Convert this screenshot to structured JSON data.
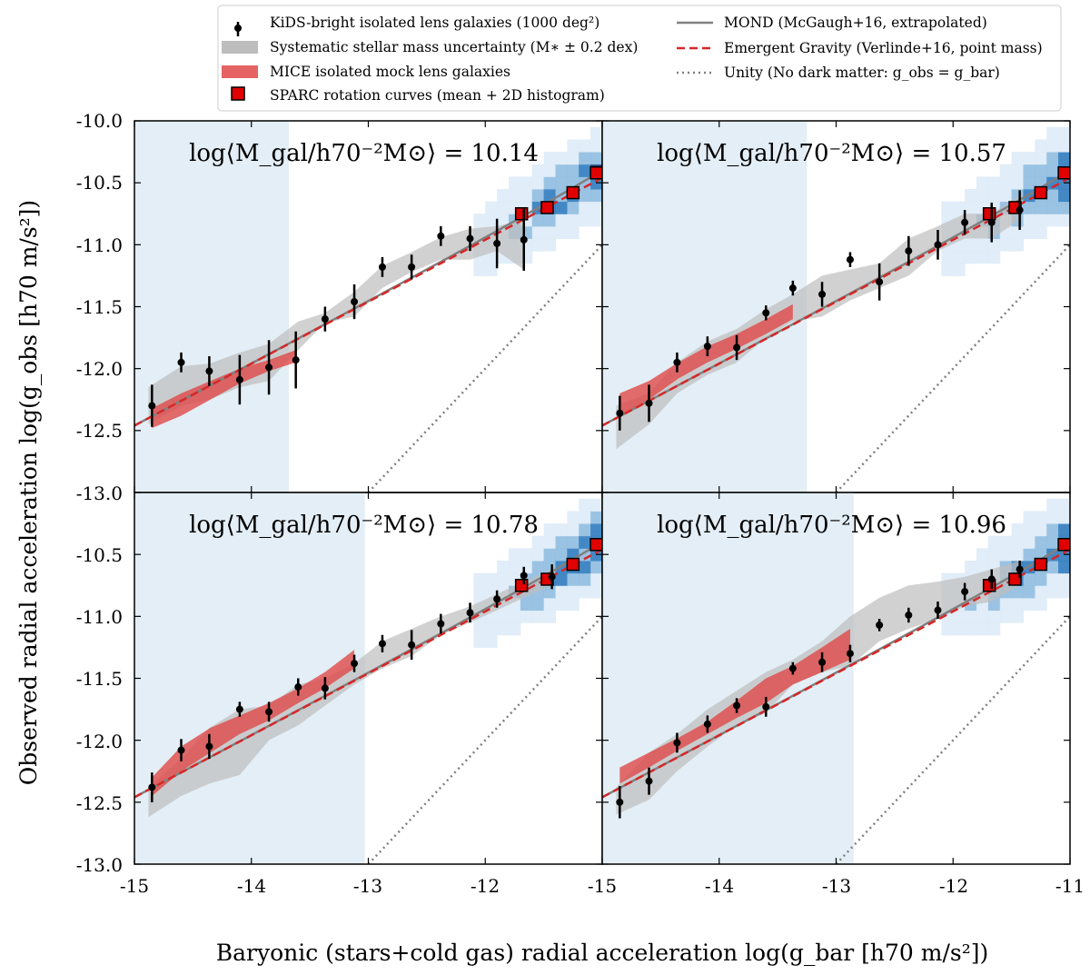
{
  "legend": {
    "left": [
      {
        "label": "KiDS-bright isolated lens galaxies (1000 deg²)",
        "marker": "errorbar-point",
        "color": "#000000"
      },
      {
        "label": "Systematic stellar mass uncertainty (M∗ ± 0.2 dex)",
        "marker": "band",
        "color": "#bdbdbd"
      },
      {
        "label": "MICE isolated mock lens galaxies",
        "marker": "band",
        "color": "#e04848"
      },
      {
        "label": "SPARC rotation curves (mean + 2D histogram)",
        "marker": "square",
        "color": "#e00000"
      }
    ],
    "right": [
      {
        "label": "MOND (McGaugh+16, extrapolated)",
        "marker": "solid",
        "color": "#808080"
      },
      {
        "label": "Emergent Gravity (Verlinde+16, point mass)",
        "marker": "dashed",
        "color": "#d62728"
      },
      {
        "label": "Unity (No dark matter: g_obs = g_bar)",
        "marker": "dotted",
        "color": "#808080"
      }
    ]
  },
  "axes": {
    "ylabel": "Observed radial acceleration log(g_obs [h70 m/s²])",
    "xlabel": "Baryonic (stars+cold gas) radial acceleration log(g_bar [h70 m/s²])",
    "xticks": [
      "-15",
      "-14",
      "-13",
      "-12",
      "-11"
    ],
    "yticks_top": [
      "-10.0",
      "-10.5",
      "-11.0",
      "-11.5",
      "-12.0",
      "-12.5",
      "-13.0"
    ],
    "yticks_bottom": [
      "-10.5",
      "-11.0",
      "-11.5",
      "-12.0",
      "-12.5",
      "-13.0"
    ]
  },
  "colors": {
    "shade": "#e3eef6",
    "gray_band": "#bdbdbd",
    "mice_band": "#e04848",
    "mond": "#808080",
    "eg": "#d62728",
    "unity": "#808080",
    "sparc": "#e00000",
    "hist_dark": "#08306b",
    "hist_light": "#deebf7"
  },
  "chart_data": [
    {
      "type": "scatter",
      "panel": "top-left",
      "title": "log⟨M_gal/h70⁻²M⊙⟩ = 10.14",
      "xlim": [
        -15,
        -11
      ],
      "ylim": [
        -13,
        -10
      ],
      "shaded_xrange": [
        -15,
        -13.68
      ],
      "kids": {
        "x": [
          -14.85,
          -14.6,
          -14.36,
          -14.1,
          -13.85,
          -13.62,
          -13.37,
          -13.12,
          -12.88,
          -12.63,
          -12.38,
          -12.13,
          -11.9,
          -11.67
        ],
        "y": [
          -12.3,
          -11.95,
          -12.02,
          -12.09,
          -11.99,
          -11.93,
          -11.6,
          -11.46,
          -11.18,
          -11.18,
          -10.93,
          -10.95,
          -10.99,
          -10.96
        ],
        "yerr": [
          0.17,
          0.08,
          0.12,
          0.2,
          0.22,
          0.23,
          0.1,
          0.14,
          0.08,
          0.1,
          0.08,
          0.1,
          0.2,
          0.25
        ]
      },
      "gray_band": {
        "x": [
          -14.88,
          -14.6,
          -14.36,
          -14.1,
          -13.85,
          -13.6,
          -13.37,
          -13.12,
          -12.88,
          -12.63,
          -12.38,
          -12.13,
          -11.9,
          -11.67
        ],
        "upper": [
          -12.15,
          -11.98,
          -11.96,
          -11.87,
          -11.8,
          -11.62,
          -11.55,
          -11.38,
          -11.17,
          -11.06,
          -10.94,
          -10.87,
          -10.85,
          -10.8
        ],
        "lower": [
          -12.45,
          -12.3,
          -12.25,
          -12.15,
          -12.1,
          -11.85,
          -11.63,
          -11.58,
          -11.35,
          -11.22,
          -11.12,
          -11.12,
          -11.05,
          -11.2
        ]
      },
      "mice_band": {
        "x": [
          -14.85,
          -14.6,
          -14.35,
          -14.1,
          -13.85,
          -13.62
        ],
        "upper": [
          -12.32,
          -12.2,
          -12.1,
          -12.0,
          -11.93,
          -11.85
        ],
        "lower": [
          -12.48,
          -12.38,
          -12.25,
          -12.12,
          -12.02,
          -11.95
        ]
      },
      "sparc": {
        "x": [
          -11.69,
          -11.47,
          -11.25,
          -11.05
        ],
        "y": [
          -10.75,
          -10.7,
          -10.58,
          -10.42
        ]
      }
    },
    {
      "type": "scatter",
      "panel": "top-right",
      "title": "log⟨M_gal/h70⁻²M⊙⟩ = 10.57",
      "xlim": [
        -15,
        -11
      ],
      "ylim": [
        -13,
        -10
      ],
      "shaded_xrange": [
        -15,
        -13.25
      ],
      "kids": {
        "x": [
          -14.85,
          -14.6,
          -14.36,
          -14.1,
          -13.85,
          -13.6,
          -13.37,
          -13.12,
          -12.88,
          -12.63,
          -12.38,
          -12.13,
          -11.9,
          -11.67,
          -11.43
        ],
        "y": [
          -12.36,
          -12.28,
          -11.95,
          -11.82,
          -11.83,
          -11.55,
          -11.35,
          -11.4,
          -11.12,
          -11.3,
          -11.05,
          -11.0,
          -10.82,
          -10.82,
          -10.72
        ],
        "yerr": [
          0.14,
          0.15,
          0.08,
          0.08,
          0.1,
          0.06,
          0.06,
          0.1,
          0.06,
          0.15,
          0.12,
          0.12,
          0.1,
          0.16,
          0.16
        ]
      },
      "gray_band": {
        "x": [
          -14.88,
          -14.6,
          -14.36,
          -14.1,
          -13.85,
          -13.6,
          -13.37,
          -13.12,
          -12.88,
          -12.63,
          -12.38,
          -12.13,
          -11.9,
          -11.67,
          -11.43
        ],
        "upper": [
          -12.3,
          -12.2,
          -11.95,
          -11.78,
          -11.68,
          -11.52,
          -11.4,
          -11.25,
          -11.2,
          -11.15,
          -10.95,
          -10.85,
          -10.75,
          -10.75,
          -10.6
        ],
        "lower": [
          -12.65,
          -12.45,
          -12.2,
          -12.05,
          -11.95,
          -11.75,
          -11.62,
          -11.58,
          -11.45,
          -11.35,
          -11.25,
          -11.05,
          -10.95,
          -10.95,
          -10.8
        ]
      },
      "mice_band": {
        "x": [
          -14.85,
          -14.6,
          -14.35,
          -14.1,
          -13.85,
          -13.6,
          -13.37
        ],
        "upper": [
          -12.2,
          -12.1,
          -11.95,
          -11.82,
          -11.72,
          -11.6,
          -11.48
        ],
        "lower": [
          -12.38,
          -12.25,
          -12.08,
          -11.95,
          -11.84,
          -11.72,
          -11.6
        ]
      },
      "sparc": {
        "x": [
          -11.69,
          -11.47,
          -11.25,
          -11.05
        ],
        "y": [
          -10.75,
          -10.7,
          -10.58,
          -10.42
        ]
      }
    },
    {
      "type": "scatter",
      "panel": "bottom-left",
      "title": "log⟨M_gal/h70⁻²M⊙⟩ = 10.78",
      "xlim": [
        -15,
        -11
      ],
      "ylim": [
        -13,
        -10
      ],
      "shaded_xrange": [
        -15,
        -13.03
      ],
      "kids": {
        "x": [
          -14.85,
          -14.6,
          -14.36,
          -14.1,
          -13.85,
          -13.6,
          -13.37,
          -13.12,
          -12.88,
          -12.63,
          -12.38,
          -12.13,
          -11.9,
          -11.67,
          -11.43
        ],
        "y": [
          -12.38,
          -12.08,
          -12.05,
          -11.75,
          -11.77,
          -11.57,
          -11.58,
          -11.38,
          -11.22,
          -11.23,
          -11.06,
          -10.97,
          -10.86,
          -10.67,
          -10.68
        ],
        "yerr": [
          0.12,
          0.09,
          0.1,
          0.06,
          0.08,
          0.07,
          0.09,
          0.07,
          0.07,
          0.12,
          0.08,
          0.08,
          0.07,
          0.07,
          0.1
        ]
      },
      "gray_band": {
        "x": [
          -14.88,
          -14.6,
          -14.36,
          -14.1,
          -13.85,
          -13.6,
          -13.37,
          -13.12,
          -12.88,
          -12.63,
          -12.38,
          -12.13,
          -11.9,
          -11.67,
          -11.43
        ],
        "upper": [
          -12.38,
          -12.15,
          -11.9,
          -11.75,
          -11.72,
          -11.55,
          -11.5,
          -11.38,
          -11.2,
          -11.1,
          -11.0,
          -10.92,
          -10.82,
          -10.72,
          -10.62
        ],
        "lower": [
          -12.62,
          -12.45,
          -12.35,
          -12.28,
          -12.0,
          -11.88,
          -11.72,
          -11.55,
          -11.42,
          -11.32,
          -11.15,
          -11.05,
          -10.95,
          -10.85,
          -10.75
        ]
      },
      "mice_band": {
        "x": [
          -14.85,
          -14.6,
          -14.35,
          -14.1,
          -13.85,
          -13.6,
          -13.37,
          -13.12
        ],
        "upper": [
          -12.3,
          -12.05,
          -11.9,
          -11.8,
          -11.7,
          -11.58,
          -11.45,
          -11.27
        ],
        "lower": [
          -12.45,
          -12.25,
          -12.1,
          -11.95,
          -11.84,
          -11.7,
          -11.58,
          -11.42
        ]
      },
      "sparc": {
        "x": [
          -11.69,
          -11.47,
          -11.25,
          -11.05
        ],
        "y": [
          -10.75,
          -10.7,
          -10.58,
          -10.42
        ]
      }
    },
    {
      "type": "scatter",
      "panel": "bottom-right",
      "title": "log⟨M_gal/h70⁻²M⊙⟩ = 10.96",
      "xlim": [
        -15,
        -11
      ],
      "ylim": [
        -13,
        -10
      ],
      "shaded_xrange": [
        -15,
        -12.85
      ],
      "kids": {
        "x": [
          -14.85,
          -14.6,
          -14.36,
          -14.1,
          -13.85,
          -13.6,
          -13.37,
          -13.12,
          -12.88,
          -12.63,
          -12.38,
          -12.13,
          -11.9,
          -11.67,
          -11.43
        ],
        "y": [
          -12.5,
          -12.33,
          -12.02,
          -11.87,
          -11.72,
          -11.73,
          -11.42,
          -11.37,
          -11.3,
          -11.07,
          -10.99,
          -10.95,
          -10.8,
          -10.7,
          -10.62
        ],
        "yerr": [
          0.13,
          0.11,
          0.08,
          0.07,
          0.06,
          0.08,
          0.05,
          0.08,
          0.07,
          0.05,
          0.06,
          0.07,
          0.07,
          0.08,
          0.07
        ]
      },
      "gray_band": {
        "x": [
          -14.88,
          -14.6,
          -14.36,
          -14.1,
          -13.85,
          -13.6,
          -13.37,
          -13.12,
          -12.88,
          -12.63,
          -12.38,
          -12.13,
          -11.9,
          -11.67,
          -11.43
        ],
        "upper": [
          -12.38,
          -12.1,
          -11.95,
          -11.75,
          -11.6,
          -11.45,
          -11.35,
          -11.2,
          -11.0,
          -10.85,
          -10.75,
          -10.72,
          -10.68,
          -10.62,
          -10.55
        ],
        "lower": [
          -12.6,
          -12.48,
          -12.25,
          -12.05,
          -11.88,
          -11.78,
          -11.55,
          -11.45,
          -11.4,
          -11.2,
          -11.1,
          -11.02,
          -10.92,
          -10.88,
          -10.75
        ]
      },
      "mice_band": {
        "x": [
          -14.85,
          -14.6,
          -14.35,
          -14.1,
          -13.85,
          -13.6,
          -13.37,
          -13.12,
          -12.88
        ],
        "upper": [
          -12.22,
          -12.1,
          -11.98,
          -11.85,
          -11.68,
          -11.5,
          -11.4,
          -11.25,
          -11.1
        ],
        "lower": [
          -12.35,
          -12.22,
          -12.08,
          -11.95,
          -11.82,
          -11.7,
          -11.55,
          -11.45,
          -11.35
        ]
      },
      "sparc": {
        "x": [
          -11.69,
          -11.47,
          -11.25,
          -11.05
        ],
        "y": [
          -10.75,
          -10.7,
          -10.58,
          -10.42
        ]
      }
    }
  ]
}
